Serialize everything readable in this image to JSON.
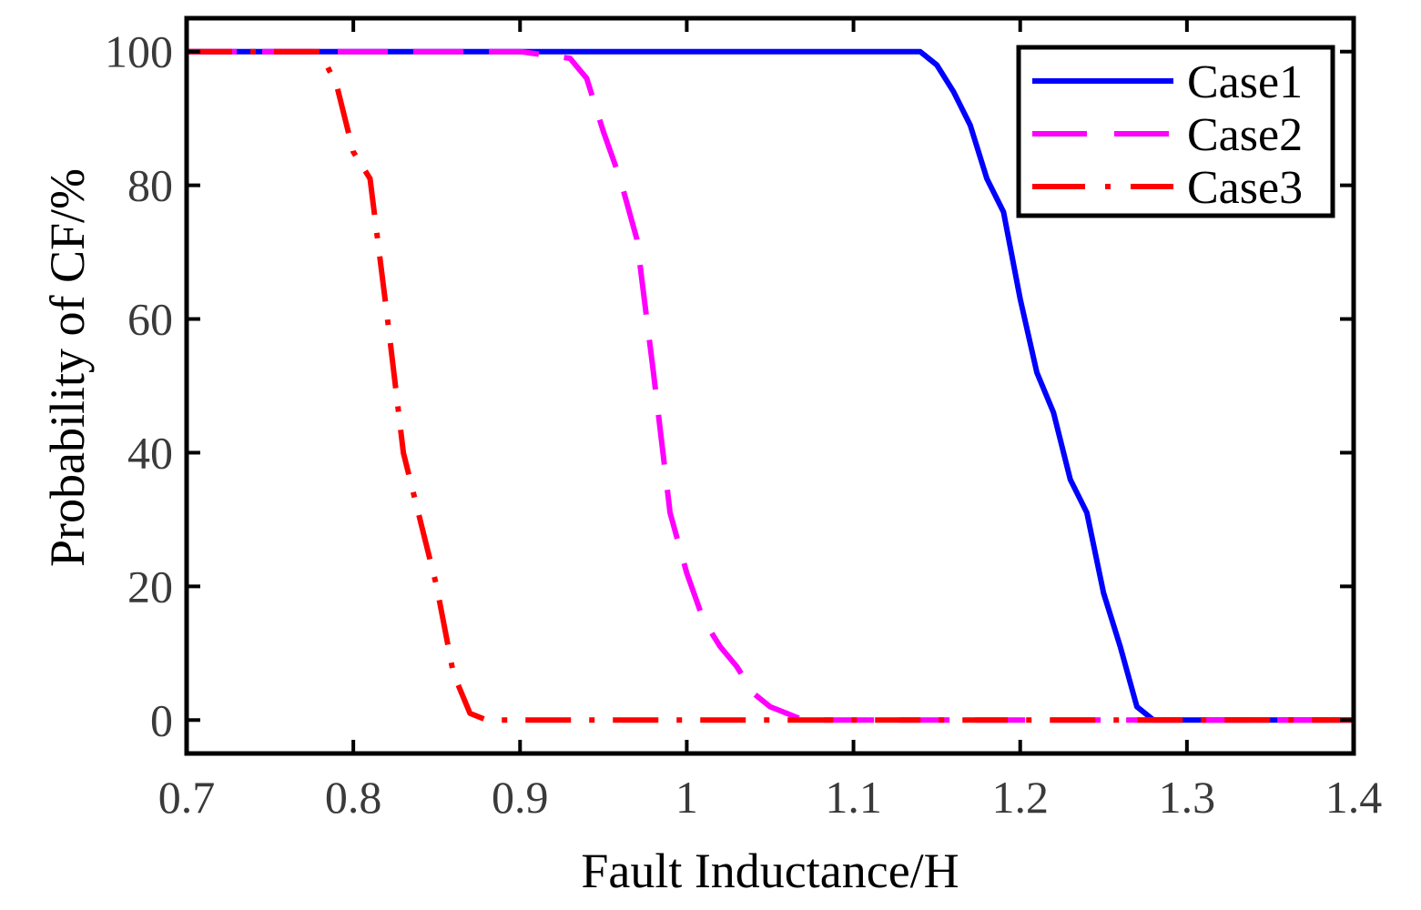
{
  "chart_data": {
    "type": "line",
    "title": "",
    "xlabel": "Fault Inductance/H",
    "ylabel": "Probability of CF/%",
    "xlim": [
      0.7,
      1.4
    ],
    "ylim": [
      -5,
      105
    ],
    "xticks": [
      "0.7",
      "0.8",
      "0.9",
      "1",
      "1.1",
      "1.2",
      "1.3",
      "1.4"
    ],
    "yticks": [
      "0",
      "20",
      "40",
      "60",
      "80",
      "100"
    ],
    "grid": false,
    "legend": "top-right",
    "series": [
      {
        "name": "Case1",
        "color": "#0000ff",
        "style": "solid",
        "x": [
          0.7,
          0.8,
          0.9,
          1.0,
          1.1,
          1.14,
          1.15,
          1.16,
          1.17,
          1.18,
          1.19,
          1.2,
          1.21,
          1.22,
          1.23,
          1.24,
          1.25,
          1.26,
          1.27,
          1.28,
          1.3,
          1.4
        ],
        "y": [
          100,
          100,
          100,
          100,
          100,
          100,
          98,
          94,
          89,
          81,
          76,
          63,
          52,
          46,
          36,
          31,
          19,
          11,
          2,
          0,
          0,
          0
        ]
      },
      {
        "name": "Case2",
        "color": "#ff00ff",
        "style": "dashed",
        "x": [
          0.7,
          0.8,
          0.9,
          0.93,
          0.94,
          0.95,
          0.96,
          0.97,
          0.98,
          0.99,
          1.0,
          1.01,
          1.02,
          1.03,
          1.04,
          1.05,
          1.06,
          1.07,
          1.1,
          1.2,
          1.3,
          1.4
        ],
        "y": [
          100,
          100,
          100,
          99,
          96,
          88,
          81,
          72,
          52,
          31,
          22,
          15,
          11,
          8,
          4,
          2,
          1,
          0,
          0,
          0,
          0,
          0
        ]
      },
      {
        "name": "Case3",
        "color": "#ff0000",
        "style": "dashdot",
        "x": [
          0.7,
          0.78,
          0.79,
          0.8,
          0.81,
          0.82,
          0.83,
          0.84,
          0.85,
          0.86,
          0.87,
          0.88,
          0.9,
          1.0,
          1.2,
          1.4
        ],
        "y": [
          100,
          100,
          95,
          85,
          81,
          61,
          40,
          30,
          20,
          7,
          1,
          0,
          0,
          0,
          0,
          0
        ]
      }
    ]
  }
}
